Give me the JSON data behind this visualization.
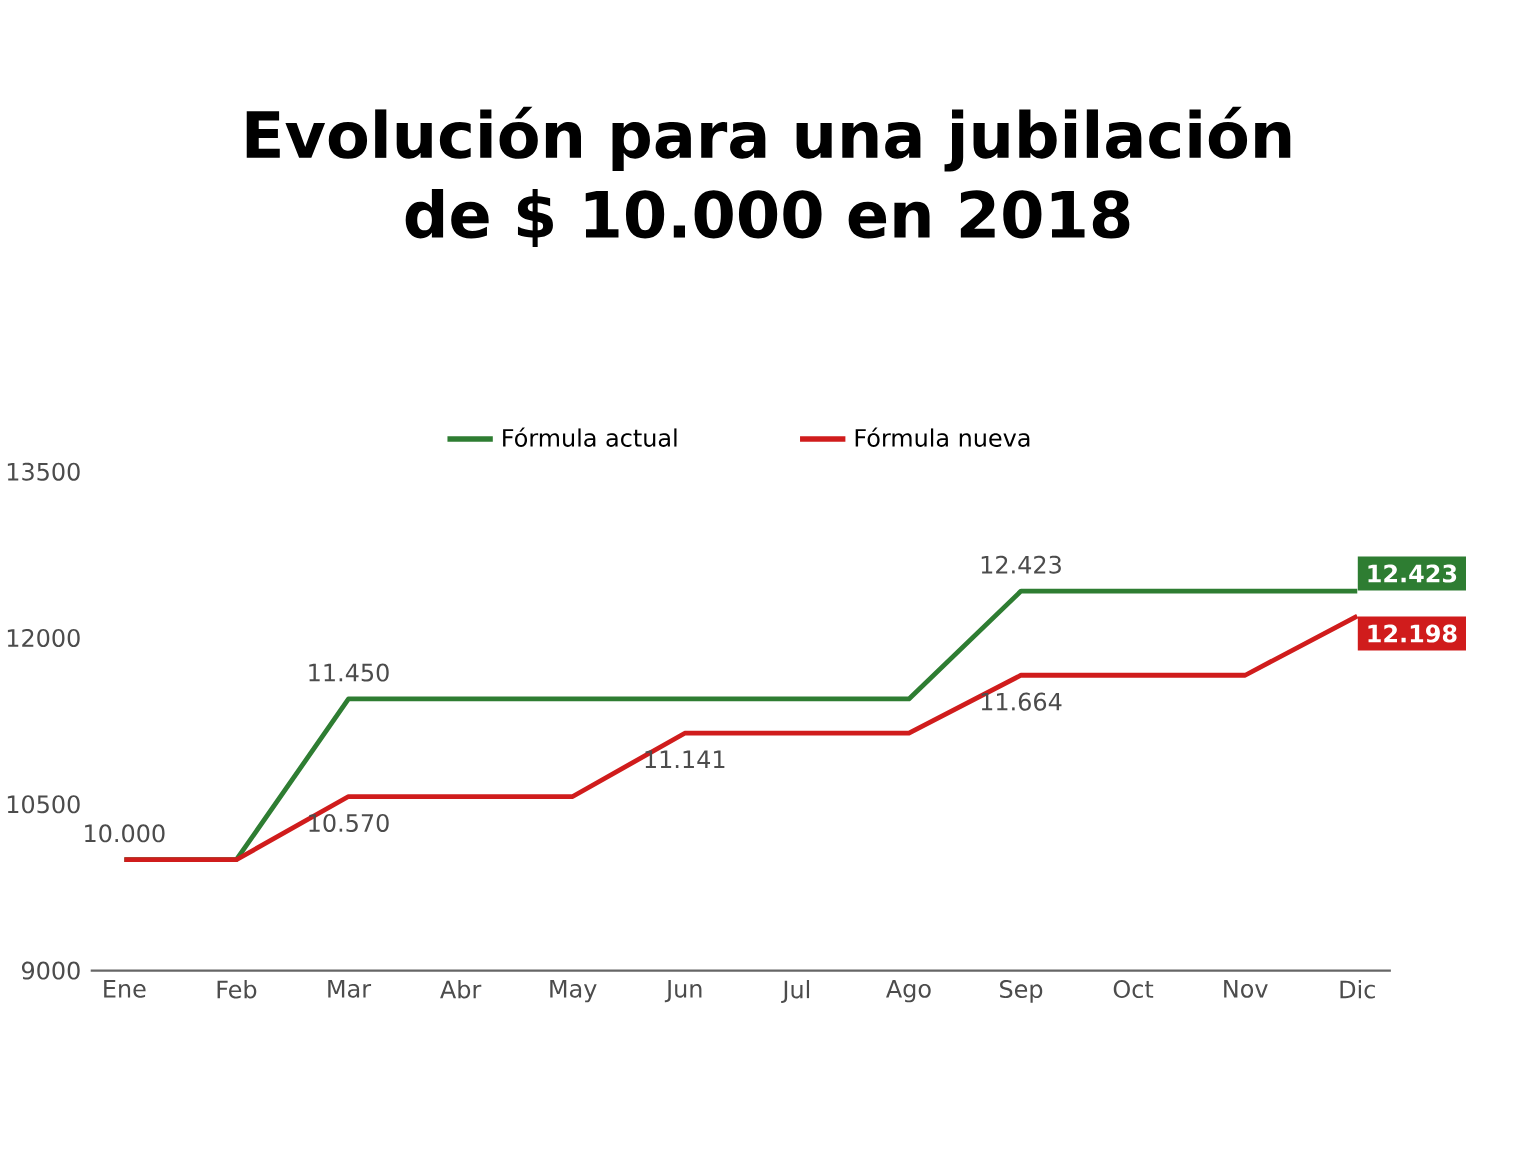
{
  "chart_data": {
    "type": "line",
    "title": "Evolución para una jubilación de $ 10.000 en 2018",
    "categories": [
      "Ene",
      "Feb",
      "Mar",
      "Abr",
      "May",
      "Jun",
      "Jul",
      "Ago",
      "Sep",
      "Oct",
      "Nov",
      "Dic"
    ],
    "series": [
      {
        "name": "Fórmula actual",
        "color": "#2e7d32",
        "values": [
          10000,
          10000,
          11450,
          11450,
          11450,
          11450,
          11450,
          11450,
          12423,
          12423,
          12423,
          12423
        ],
        "value_labels": [
          "10.000",
          null,
          "11.450",
          null,
          null,
          null,
          null,
          null,
          "12.423",
          null,
          null,
          "12.423"
        ]
      },
      {
        "name": "Fórmula nueva",
        "color": "#d01c1c",
        "values": [
          10000,
          10000,
          10570,
          10570,
          10570,
          11141,
          11141,
          11141,
          11664,
          11664,
          11664,
          12198
        ],
        "value_labels": [
          null,
          null,
          "10.570",
          null,
          null,
          "11.141",
          null,
          null,
          "11.664",
          null,
          null,
          "12.198"
        ]
      }
    ],
    "ylim": [
      9000,
      13500
    ],
    "yticks": [
      9000,
      10500,
      12000,
      13500
    ],
    "grid": false,
    "legend": "top",
    "marker": "none",
    "line_style": "solid"
  }
}
